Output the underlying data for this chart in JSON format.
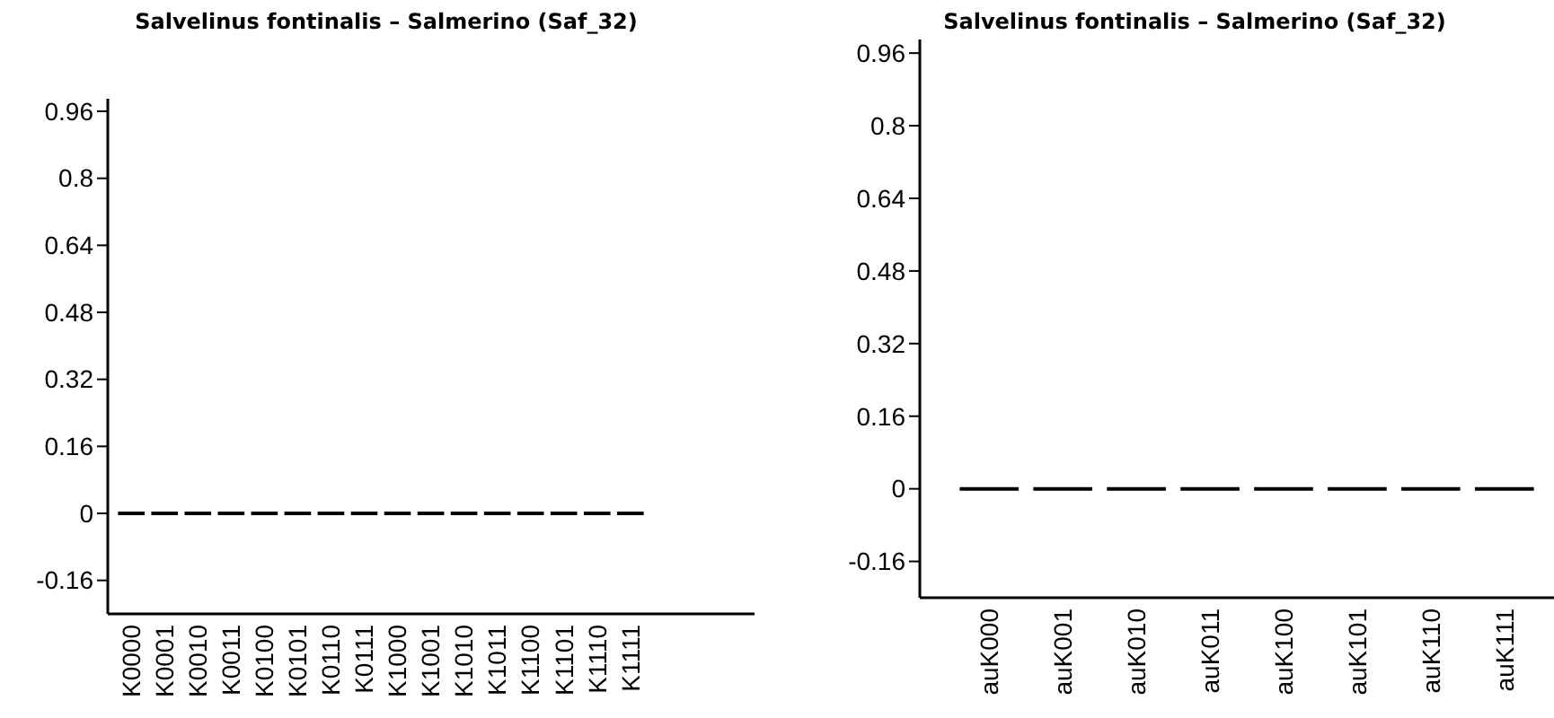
{
  "chart_data": [
    {
      "type": "bar",
      "title": "Salvelinus fontinalis – Salmerino (Saf_32)",
      "categories": [
        "K0000",
        "K0001",
        "K0010",
        "K0011",
        "K0100",
        "K0101",
        "K0110",
        "K0111",
        "K1000",
        "K1001",
        "K1010",
        "K1011",
        "K1100",
        "K1101",
        "K1110",
        "K1111"
      ],
      "values": [
        0,
        0,
        0,
        0,
        0,
        0,
        0,
        0,
        0,
        0,
        0,
        0,
        0,
        0,
        0,
        0
      ],
      "color": "#000000",
      "ylim": [
        -0.24,
        0.99
      ],
      "yticks": [
        -0.16,
        0,
        0.16,
        0.32,
        0.48,
        0.64,
        0.8,
        0.96
      ]
    },
    {
      "type": "bar",
      "title": "Salvelinus fontinalis – Salmerino (Saf_32)",
      "categories": [
        "auK000",
        "auK001",
        "auK010",
        "auK011",
        "auK100",
        "auK101",
        "auK110",
        "auK111"
      ],
      "values": [
        0,
        0,
        0,
        0,
        0,
        0,
        0,
        0
      ],
      "color": "#000000",
      "ylim": [
        -0.24,
        0.99
      ],
      "yticks": [
        -0.16,
        0,
        0.16,
        0.32,
        0.48,
        0.64,
        0.8,
        0.96
      ]
    }
  ]
}
